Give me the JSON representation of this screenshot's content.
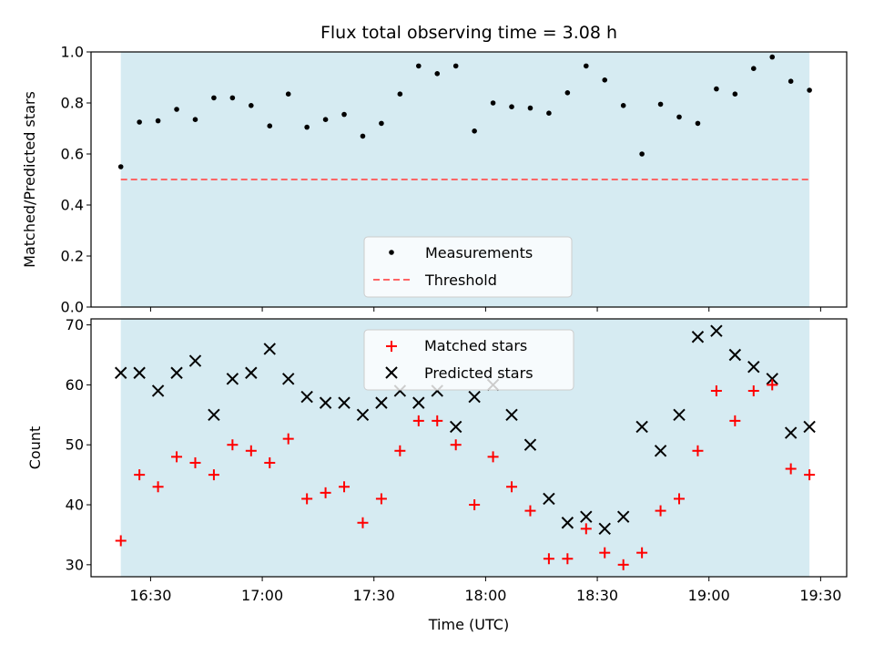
{
  "chart_data": {
    "type": "scatter",
    "title": "Flux total observing time = 3.08 h",
    "xlabel": "Time (UTC)",
    "x_ticks": [
      "16:30",
      "17:00",
      "17:30",
      "18:00",
      "18:30",
      "19:00",
      "19:30"
    ],
    "x": [
      "16:22",
      "16:27",
      "16:32",
      "16:37",
      "16:42",
      "16:47",
      "16:52",
      "16:57",
      "17:02",
      "17:07",
      "17:12",
      "17:17",
      "17:22",
      "17:27",
      "17:32",
      "17:37",
      "17:42",
      "17:47",
      "17:52",
      "17:57",
      "18:02",
      "18:07",
      "18:12",
      "18:17",
      "18:22",
      "18:27",
      "18:32",
      "18:37",
      "18:42",
      "18:47",
      "18:52",
      "18:57",
      "19:02",
      "19:07",
      "19:12",
      "19:17",
      "19:22",
      "19:27"
    ],
    "xlim": [
      "16:14",
      "19:37"
    ],
    "observing_span": [
      "16:22",
      "19:27"
    ],
    "top_panel": {
      "ylabel": "Matched/Predicted stars",
      "ylim": [
        0,
        1.0
      ],
      "yticks": [
        "0.0",
        "0.2",
        "0.4",
        "0.6",
        "0.8",
        "1.0"
      ],
      "threshold": 0.5,
      "series": [
        {
          "name": "Measurements",
          "color": "#000000",
          "marker": "dot",
          "values": [
            0.55,
            0.725,
            0.73,
            0.775,
            0.735,
            0.82,
            0.82,
            0.79,
            0.71,
            0.835,
            0.705,
            0.735,
            0.755,
            0.67,
            0.72,
            0.835,
            0.945,
            0.915,
            0.945,
            0.69,
            0.8,
            0.785,
            0.78,
            0.76,
            0.84,
            0.945,
            0.89,
            0.79,
            0.6,
            0.795,
            0.745,
            0.72,
            0.855,
            0.835,
            0.935,
            0.98,
            0.885,
            0.85
          ]
        }
      ],
      "threshold_label": "Threshold",
      "threshold_color": "#ff6666"
    },
    "bottom_panel": {
      "ylabel": "Count",
      "ylim": [
        28,
        71
      ],
      "yticks": [
        "30",
        "40",
        "50",
        "60",
        "70"
      ],
      "series": [
        {
          "name": "Matched stars",
          "color": "#ff0000",
          "marker": "plus",
          "values": [
            34,
            45,
            43,
            48,
            47,
            45,
            50,
            49,
            47,
            51,
            41,
            42,
            43,
            37,
            41,
            49,
            54,
            54,
            50,
            40,
            48,
            43,
            39,
            31,
            31,
            36,
            32,
            30,
            32,
            39,
            41,
            49,
            59,
            54,
            59,
            60,
            46,
            45
          ]
        },
        {
          "name": "Predicted stars",
          "color": "#000000",
          "marker": "x",
          "values": [
            62,
            62,
            59,
            62,
            64,
            55,
            61,
            62,
            66,
            61,
            58,
            57,
            57,
            55,
            57,
            59,
            57,
            59,
            53,
            58,
            60,
            55,
            50,
            41,
            37,
            38,
            36,
            38,
            53,
            49,
            55,
            68,
            69,
            65,
            63,
            61,
            52,
            53
          ]
        }
      ]
    },
    "span_color": "#add8e6",
    "grid": false,
    "legend_placement": "lower-center (top), upper-center (bottom)"
  }
}
